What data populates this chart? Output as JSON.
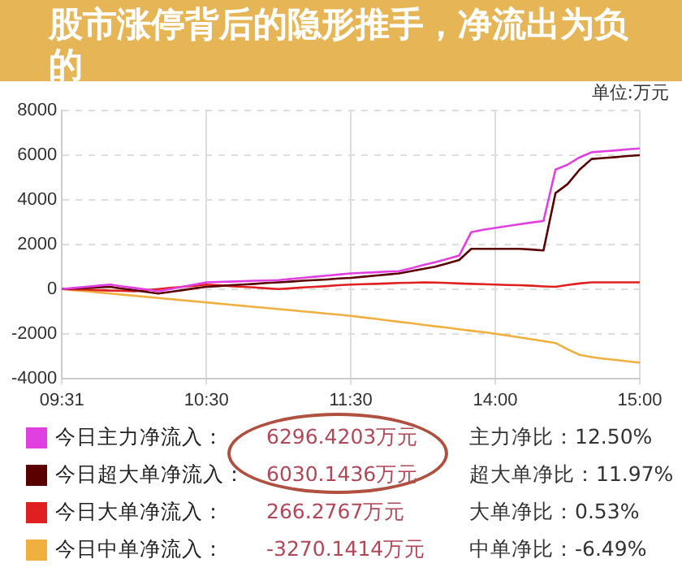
{
  "chart_data": {
    "type": "line",
    "title": "股市涨停背后的隐形推手，净流出为负的",
    "categories": [
      "09:31",
      null,
      null,
      null,
      null,
      null,
      null,
      null,
      null,
      null,
      null,
      null,
      "10:30",
      null,
      null,
      null,
      null,
      null,
      null,
      null,
      null,
      null,
      null,
      null,
      "11:30",
      null,
      null,
      null,
      null,
      null,
      null,
      null,
      null,
      null,
      null,
      null,
      "14:00",
      null,
      null,
      null,
      null,
      null,
      null,
      null,
      null,
      null,
      null,
      null,
      "15:00"
    ],
    "ylim": [
      -4000,
      8000
    ],
    "yticks": [
      -4000,
      -2000,
      0,
      2000,
      4000,
      6000,
      8000
    ],
    "grid": true,
    "legend": "bottom",
    "marker": "none",
    "annotations": [
      "单位:万元",
      "6296.4203万元",
      "主力净比：12.50%",
      "6030.1436万元",
      "超大单净比：11.97%",
      "266.2767万元",
      "大单净比：0.53%",
      "-3270.1414万元",
      "中单净比：-6.49%"
    ],
    "series": [
      {
        "name": "今日主力净流入：",
        "color": "#e040e0",
        "values": [
          0,
          50,
          100,
          150,
          200,
          120,
          50,
          -20,
          -100,
          0,
          100,
          200,
          300,
          320,
          330,
          350,
          370,
          380,
          400,
          450,
          500,
          550,
          600,
          650,
          700,
          730,
          750,
          780,
          800,
          930,
          1070,
          1200,
          1350,
          1500,
          2550,
          2660,
          2740,
          2820,
          2900,
          2980,
          3050,
          5350,
          5570,
          5900,
          6130,
          6170,
          6210,
          6260,
          6300
        ]
      },
      {
        "name": "今日超大单净流入：",
        "color": "#5a0000",
        "values": [
          0,
          25,
          50,
          75,
          100,
          20,
          -50,
          -130,
          -200,
          -130,
          -50,
          30,
          100,
          130,
          170,
          200,
          230,
          270,
          300,
          330,
          370,
          400,
          430,
          470,
          500,
          550,
          600,
          650,
          700,
          800,
          900,
          1000,
          1150,
          1300,
          1800,
          1800,
          1800,
          1800,
          1800,
          1770,
          1730,
          4300,
          4700,
          5350,
          5830,
          5870,
          5910,
          5960,
          6000
        ]
      },
      {
        "name": "今日大单净流入：",
        "color": "#e02020",
        "values": [
          0,
          -20,
          -30,
          -50,
          -70,
          -80,
          -100,
          -50,
          0,
          50,
          100,
          150,
          200,
          170,
          130,
          100,
          70,
          30,
          0,
          30,
          70,
          100,
          130,
          170,
          200,
          220,
          230,
          250,
          270,
          280,
          300,
          290,
          270,
          250,
          230,
          220,
          200,
          180,
          170,
          150,
          120,
          100,
          180,
          250,
          300,
          300,
          300,
          300,
          300
        ]
      },
      {
        "name": "今日中单净流入：",
        "color": "#f0b040",
        "values": [
          0,
          -50,
          -100,
          -150,
          -200,
          -250,
          -300,
          -350,
          -400,
          -450,
          -500,
          -550,
          -600,
          -650,
          -700,
          -750,
          -800,
          -850,
          -900,
          -950,
          -1000,
          -1050,
          -1100,
          -1150,
          -1200,
          -1270,
          -1330,
          -1400,
          -1470,
          -1530,
          -1600,
          -1670,
          -1730,
          -1800,
          -1870,
          -1930,
          -2000,
          -2080,
          -2170,
          -2250,
          -2330,
          -2420,
          -2700,
          -2950,
          -3050,
          -3120,
          -3180,
          -3240,
          -3300
        ]
      }
    ]
  }
}
